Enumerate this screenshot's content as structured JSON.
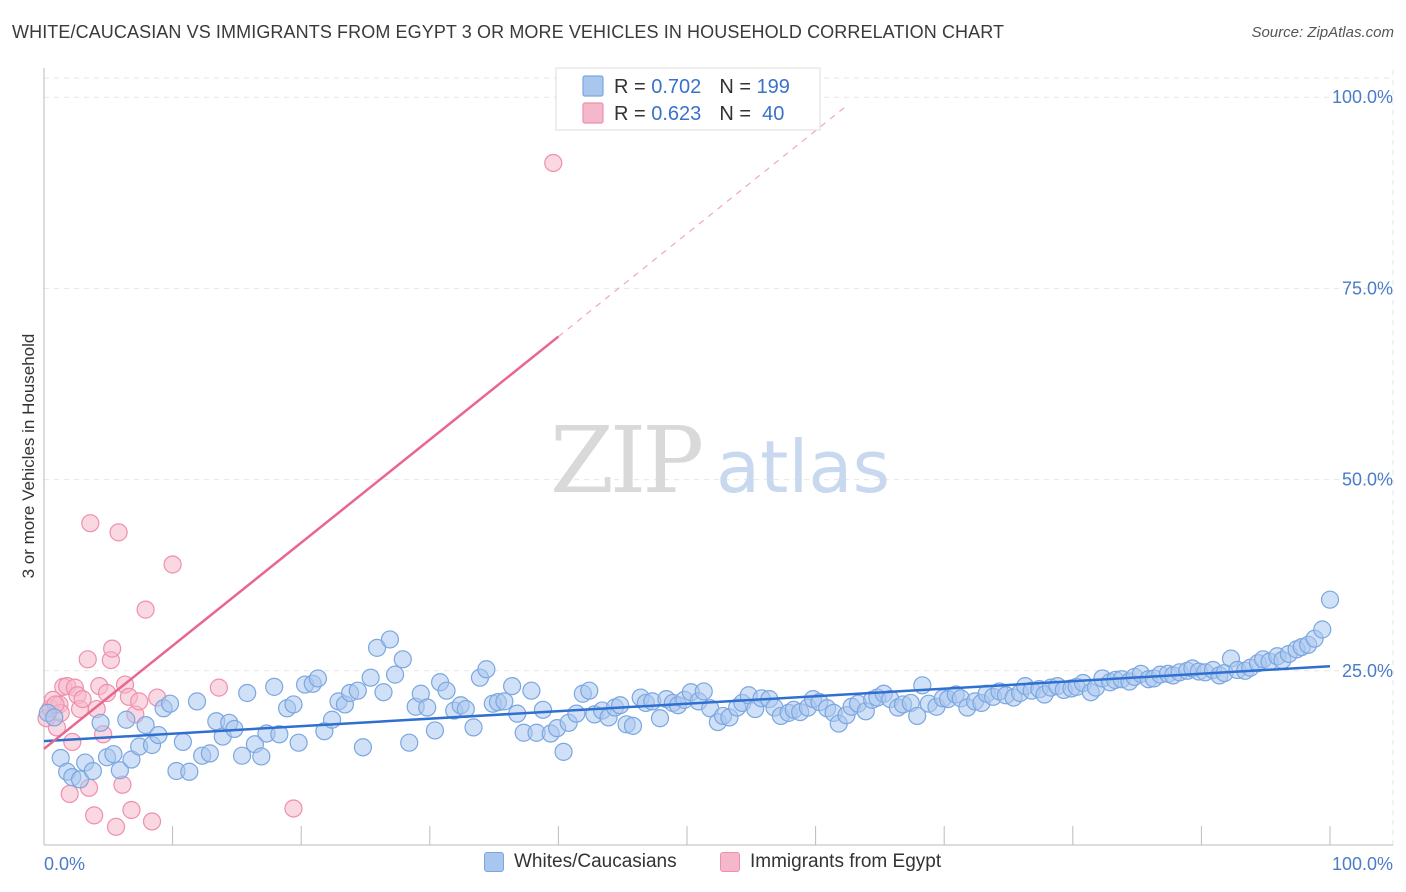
{
  "header": {
    "title": "WHITE/CAUCASIAN VS IMMIGRANTS FROM EGYPT 3 OR MORE VEHICLES IN HOUSEHOLD CORRELATION CHART",
    "source": "Source: ZipAtlas.com"
  },
  "watermark": {
    "zip": "ZIP",
    "atlas": "atlas"
  },
  "legend_top": {
    "rows": [
      {
        "r_label": "R = ",
        "r_value": "0.702",
        "n_label": "N = ",
        "n_value": "199",
        "color": "#a9c6ef"
      },
      {
        "r_label": "R = ",
        "r_value": "0.623",
        "n_label": "N = ",
        "n_value": " 40",
        "color": "#f5b8cb"
      }
    ]
  },
  "bottom_legend": {
    "items": [
      {
        "label": "Whites/Caucasians",
        "color": "#a9c6ef"
      },
      {
        "label": "Immigrants from Egypt",
        "color": "#f5b8cb"
      }
    ]
  },
  "chart_data": {
    "type": "scatter",
    "title": "WHITE/CAUCASIAN VS IMMIGRANTS FROM EGYPT 3 OR MORE VEHICLES IN HOUSEHOLD CORRELATION CHART",
    "xlabel": "",
    "ylabel": "3 or more Vehicles in Household",
    "xlim": [
      0,
      100
    ],
    "ylim": [
      0,
      105
    ],
    "x_tick_labels": [
      "0.0%",
      "100.0%"
    ],
    "y_ticks": [
      25,
      50,
      75,
      100
    ],
    "y_tick_labels": [
      "25.0%",
      "50.0%",
      "75.0%",
      "100.0%"
    ],
    "grid": true,
    "legend_position": "top-center",
    "series": [
      {
        "name": "Whites/Caucasians",
        "color": "#7ba7e0",
        "fill": "#a9c6ef",
        "trend": {
          "x": [
            0,
            100
          ],
          "y": [
            15.8,
            25.6
          ],
          "color": "#2f6fd0"
        },
        "points": [
          [
            0.3,
            19.5
          ],
          [
            0.8,
            18.9
          ],
          [
            1.3,
            13.6
          ],
          [
            1.8,
            11.8
          ],
          [
            2.2,
            11.1
          ],
          [
            2.8,
            10.8
          ],
          [
            3.2,
            13.0
          ],
          [
            3.8,
            11.9
          ],
          [
            4.4,
            18.2
          ],
          [
            4.9,
            13.7
          ],
          [
            5.4,
            14.1
          ],
          [
            5.9,
            12.0
          ],
          [
            6.4,
            18.6
          ],
          [
            6.8,
            13.4
          ],
          [
            7.4,
            15.1
          ],
          [
            7.9,
            17.9
          ],
          [
            8.4,
            15.3
          ],
          [
            8.9,
            16.6
          ],
          [
            9.3,
            20.1
          ],
          [
            9.8,
            20.7
          ],
          [
            10.3,
            11.9
          ],
          [
            10.8,
            15.7
          ],
          [
            11.3,
            11.8
          ],
          [
            11.9,
            21.0
          ],
          [
            12.3,
            13.9
          ],
          [
            12.9,
            14.2
          ],
          [
            13.4,
            18.4
          ],
          [
            13.9,
            16.4
          ],
          [
            14.4,
            18.2
          ],
          [
            14.8,
            17.4
          ],
          [
            15.4,
            13.9
          ],
          [
            15.8,
            22.1
          ],
          [
            16.4,
            15.4
          ],
          [
            16.9,
            13.8
          ],
          [
            17.3,
            16.8
          ],
          [
            17.9,
            22.9
          ],
          [
            18.3,
            16.7
          ],
          [
            18.9,
            20.1
          ],
          [
            19.4,
            20.6
          ],
          [
            19.8,
            15.6
          ],
          [
            20.3,
            23.2
          ],
          [
            20.9,
            23.3
          ],
          [
            21.3,
            24.0
          ],
          [
            21.8,
            17.1
          ],
          [
            22.4,
            18.6
          ],
          [
            22.9,
            21.0
          ],
          [
            23.4,
            20.6
          ],
          [
            23.8,
            22.1
          ],
          [
            24.4,
            22.4
          ],
          [
            24.8,
            15.0
          ],
          [
            25.4,
            24.1
          ],
          [
            25.9,
            28.0
          ],
          [
            26.4,
            22.2
          ],
          [
            26.9,
            29.1
          ],
          [
            27.3,
            24.5
          ],
          [
            27.9,
            26.5
          ],
          [
            28.4,
            15.6
          ],
          [
            28.9,
            20.3
          ],
          [
            29.3,
            22.0
          ],
          [
            29.8,
            20.2
          ],
          [
            30.4,
            17.2
          ],
          [
            30.8,
            23.5
          ],
          [
            31.3,
            22.4
          ],
          [
            31.9,
            19.8
          ],
          [
            32.4,
            20.5
          ],
          [
            32.8,
            20.0
          ],
          [
            33.4,
            17.6
          ],
          [
            33.9,
            24.1
          ],
          [
            34.4,
            25.2
          ],
          [
            34.9,
            20.7
          ],
          [
            35.3,
            20.9
          ],
          [
            35.8,
            21.0
          ],
          [
            36.4,
            23.0
          ],
          [
            36.8,
            19.4
          ],
          [
            37.3,
            16.9
          ],
          [
            37.9,
            22.4
          ],
          [
            38.3,
            16.9
          ],
          [
            38.8,
            19.9
          ],
          [
            39.4,
            16.8
          ],
          [
            39.9,
            17.5
          ],
          [
            40.4,
            14.4
          ],
          [
            40.8,
            18.2
          ],
          [
            41.4,
            19.4
          ],
          [
            41.9,
            22.0
          ],
          [
            42.4,
            22.4
          ],
          [
            42.8,
            19.3
          ],
          [
            43.4,
            19.8
          ],
          [
            43.9,
            18.9
          ],
          [
            44.4,
            20.2
          ],
          [
            44.8,
            20.5
          ],
          [
            45.3,
            18.0
          ],
          [
            45.8,
            17.8
          ],
          [
            46.4,
            21.5
          ],
          [
            46.8,
            20.8
          ],
          [
            47.3,
            21.0
          ],
          [
            47.9,
            18.8
          ],
          [
            48.4,
            21.3
          ],
          [
            48.9,
            20.8
          ],
          [
            49.3,
            20.5
          ],
          [
            49.8,
            21.2
          ],
          [
            50.3,
            22.2
          ],
          [
            50.9,
            21.0
          ],
          [
            51.3,
            22.3
          ],
          [
            51.8,
            20.1
          ],
          [
            52.4,
            18.3
          ],
          [
            52.8,
            19.1
          ],
          [
            53.3,
            18.9
          ],
          [
            53.9,
            20.2
          ],
          [
            54.3,
            20.8
          ],
          [
            54.8,
            21.8
          ],
          [
            55.3,
            20.0
          ],
          [
            55.8,
            21.4
          ],
          [
            56.4,
            21.3
          ],
          [
            56.8,
            20.2
          ],
          [
            57.3,
            19.1
          ],
          [
            57.9,
            19.5
          ],
          [
            58.3,
            19.9
          ],
          [
            58.8,
            19.6
          ],
          [
            59.4,
            20.2
          ],
          [
            59.8,
            21.3
          ],
          [
            60.3,
            20.9
          ],
          [
            60.9,
            20.1
          ],
          [
            61.4,
            19.5
          ],
          [
            61.8,
            18.1
          ],
          [
            62.4,
            19.2
          ],
          [
            62.8,
            20.3
          ],
          [
            63.3,
            20.7
          ],
          [
            63.9,
            19.7
          ],
          [
            64.4,
            21.2
          ],
          [
            64.8,
            21.5
          ],
          [
            65.3,
            22.0
          ],
          [
            65.8,
            21.3
          ],
          [
            66.4,
            20.2
          ],
          [
            66.8,
            20.6
          ],
          [
            67.4,
            20.8
          ],
          [
            67.9,
            19.1
          ],
          [
            68.3,
            23.1
          ],
          [
            68.8,
            20.7
          ],
          [
            69.4,
            20.3
          ],
          [
            69.9,
            21.4
          ],
          [
            70.3,
            21.3
          ],
          [
            70.9,
            21.9
          ],
          [
            71.3,
            21.4
          ],
          [
            71.8,
            20.2
          ],
          [
            72.4,
            21.0
          ],
          [
            72.9,
            20.8
          ],
          [
            73.3,
            22.0
          ],
          [
            73.8,
            21.6
          ],
          [
            74.3,
            22.3
          ],
          [
            74.8,
            21.8
          ],
          [
            75.4,
            21.5
          ],
          [
            75.9,
            22.1
          ],
          [
            76.3,
            23.0
          ],
          [
            76.8,
            22.4
          ],
          [
            77.4,
            22.6
          ],
          [
            77.8,
            21.9
          ],
          [
            78.3,
            22.8
          ],
          [
            78.8,
            23.0
          ],
          [
            79.3,
            22.5
          ],
          [
            79.9,
            22.7
          ],
          [
            80.3,
            22.9
          ],
          [
            80.8,
            23.4
          ],
          [
            81.4,
            22.2
          ],
          [
            81.8,
            22.8
          ],
          [
            82.3,
            24.0
          ],
          [
            82.9,
            23.5
          ],
          [
            83.3,
            23.8
          ],
          [
            83.8,
            23.9
          ],
          [
            84.4,
            23.6
          ],
          [
            84.8,
            24.2
          ],
          [
            85.3,
            24.6
          ],
          [
            85.9,
            23.9
          ],
          [
            86.3,
            24.0
          ],
          [
            86.8,
            24.5
          ],
          [
            87.4,
            24.6
          ],
          [
            87.8,
            24.4
          ],
          [
            88.3,
            24.8
          ],
          [
            88.9,
            25.0
          ],
          [
            89.3,
            25.3
          ],
          [
            89.8,
            24.9
          ],
          [
            90.3,
            24.8
          ],
          [
            90.9,
            25.1
          ],
          [
            91.4,
            24.4
          ],
          [
            91.8,
            24.7
          ],
          [
            92.3,
            26.6
          ],
          [
            92.8,
            25.1
          ],
          [
            93.4,
            25.0
          ],
          [
            93.8,
            25.4
          ],
          [
            94.4,
            26.0
          ],
          [
            94.8,
            26.5
          ],
          [
            95.3,
            26.2
          ],
          [
            95.9,
            26.9
          ],
          [
            96.3,
            26.4
          ],
          [
            96.8,
            27.2
          ],
          [
            97.4,
            27.8
          ],
          [
            97.8,
            28.1
          ],
          [
            98.3,
            28.4
          ],
          [
            98.8,
            29.2
          ],
          [
            99.4,
            30.4
          ],
          [
            100.0,
            34.3
          ]
        ]
      },
      {
        "name": "Immigrants from Egypt",
        "color": "#ee8fae",
        "fill": "#f5b8cb",
        "trend": {
          "x": [
            0,
            40
          ],
          "y": [
            14.8,
            68.7
          ],
          "color": "#e8678f"
        },
        "trend_extension": {
          "x": [
            40,
            62.5
          ],
          "y": [
            68.7,
            99.0
          ]
        },
        "points": [
          [
            0.2,
            18.8
          ],
          [
            0.5,
            20.1
          ],
          [
            0.7,
            21.2
          ],
          [
            1.0,
            17.6
          ],
          [
            1.2,
            20.6
          ],
          [
            1.5,
            22.9
          ],
          [
            1.8,
            23.0
          ],
          [
            2.0,
            8.9
          ],
          [
            2.2,
            15.7
          ],
          [
            2.4,
            22.8
          ],
          [
            2.6,
            21.8
          ],
          [
            2.8,
            20.0
          ],
          [
            3.0,
            21.3
          ],
          [
            3.4,
            26.5
          ],
          [
            3.5,
            9.7
          ],
          [
            3.6,
            44.3
          ],
          [
            3.9,
            6.1
          ],
          [
            4.3,
            23.0
          ],
          [
            4.1,
            20.0
          ],
          [
            4.6,
            16.7
          ],
          [
            4.9,
            22.1
          ],
          [
            5.2,
            26.4
          ],
          [
            5.3,
            27.9
          ],
          [
            5.6,
            4.6
          ],
          [
            5.8,
            43.1
          ],
          [
            6.1,
            10.1
          ],
          [
            6.3,
            23.2
          ],
          [
            6.6,
            21.6
          ],
          [
            6.8,
            6.8
          ],
          [
            7.1,
            19.3
          ],
          [
            7.4,
            21.0
          ],
          [
            7.9,
            33.0
          ],
          [
            8.4,
            5.3
          ],
          [
            8.8,
            21.5
          ],
          [
            10.0,
            38.9
          ],
          [
            13.6,
            22.8
          ],
          [
            19.4,
            7.0
          ],
          [
            1.3,
            19.5
          ],
          [
            0.9,
            20.6
          ],
          [
            39.6,
            91.4
          ]
        ]
      }
    ]
  }
}
